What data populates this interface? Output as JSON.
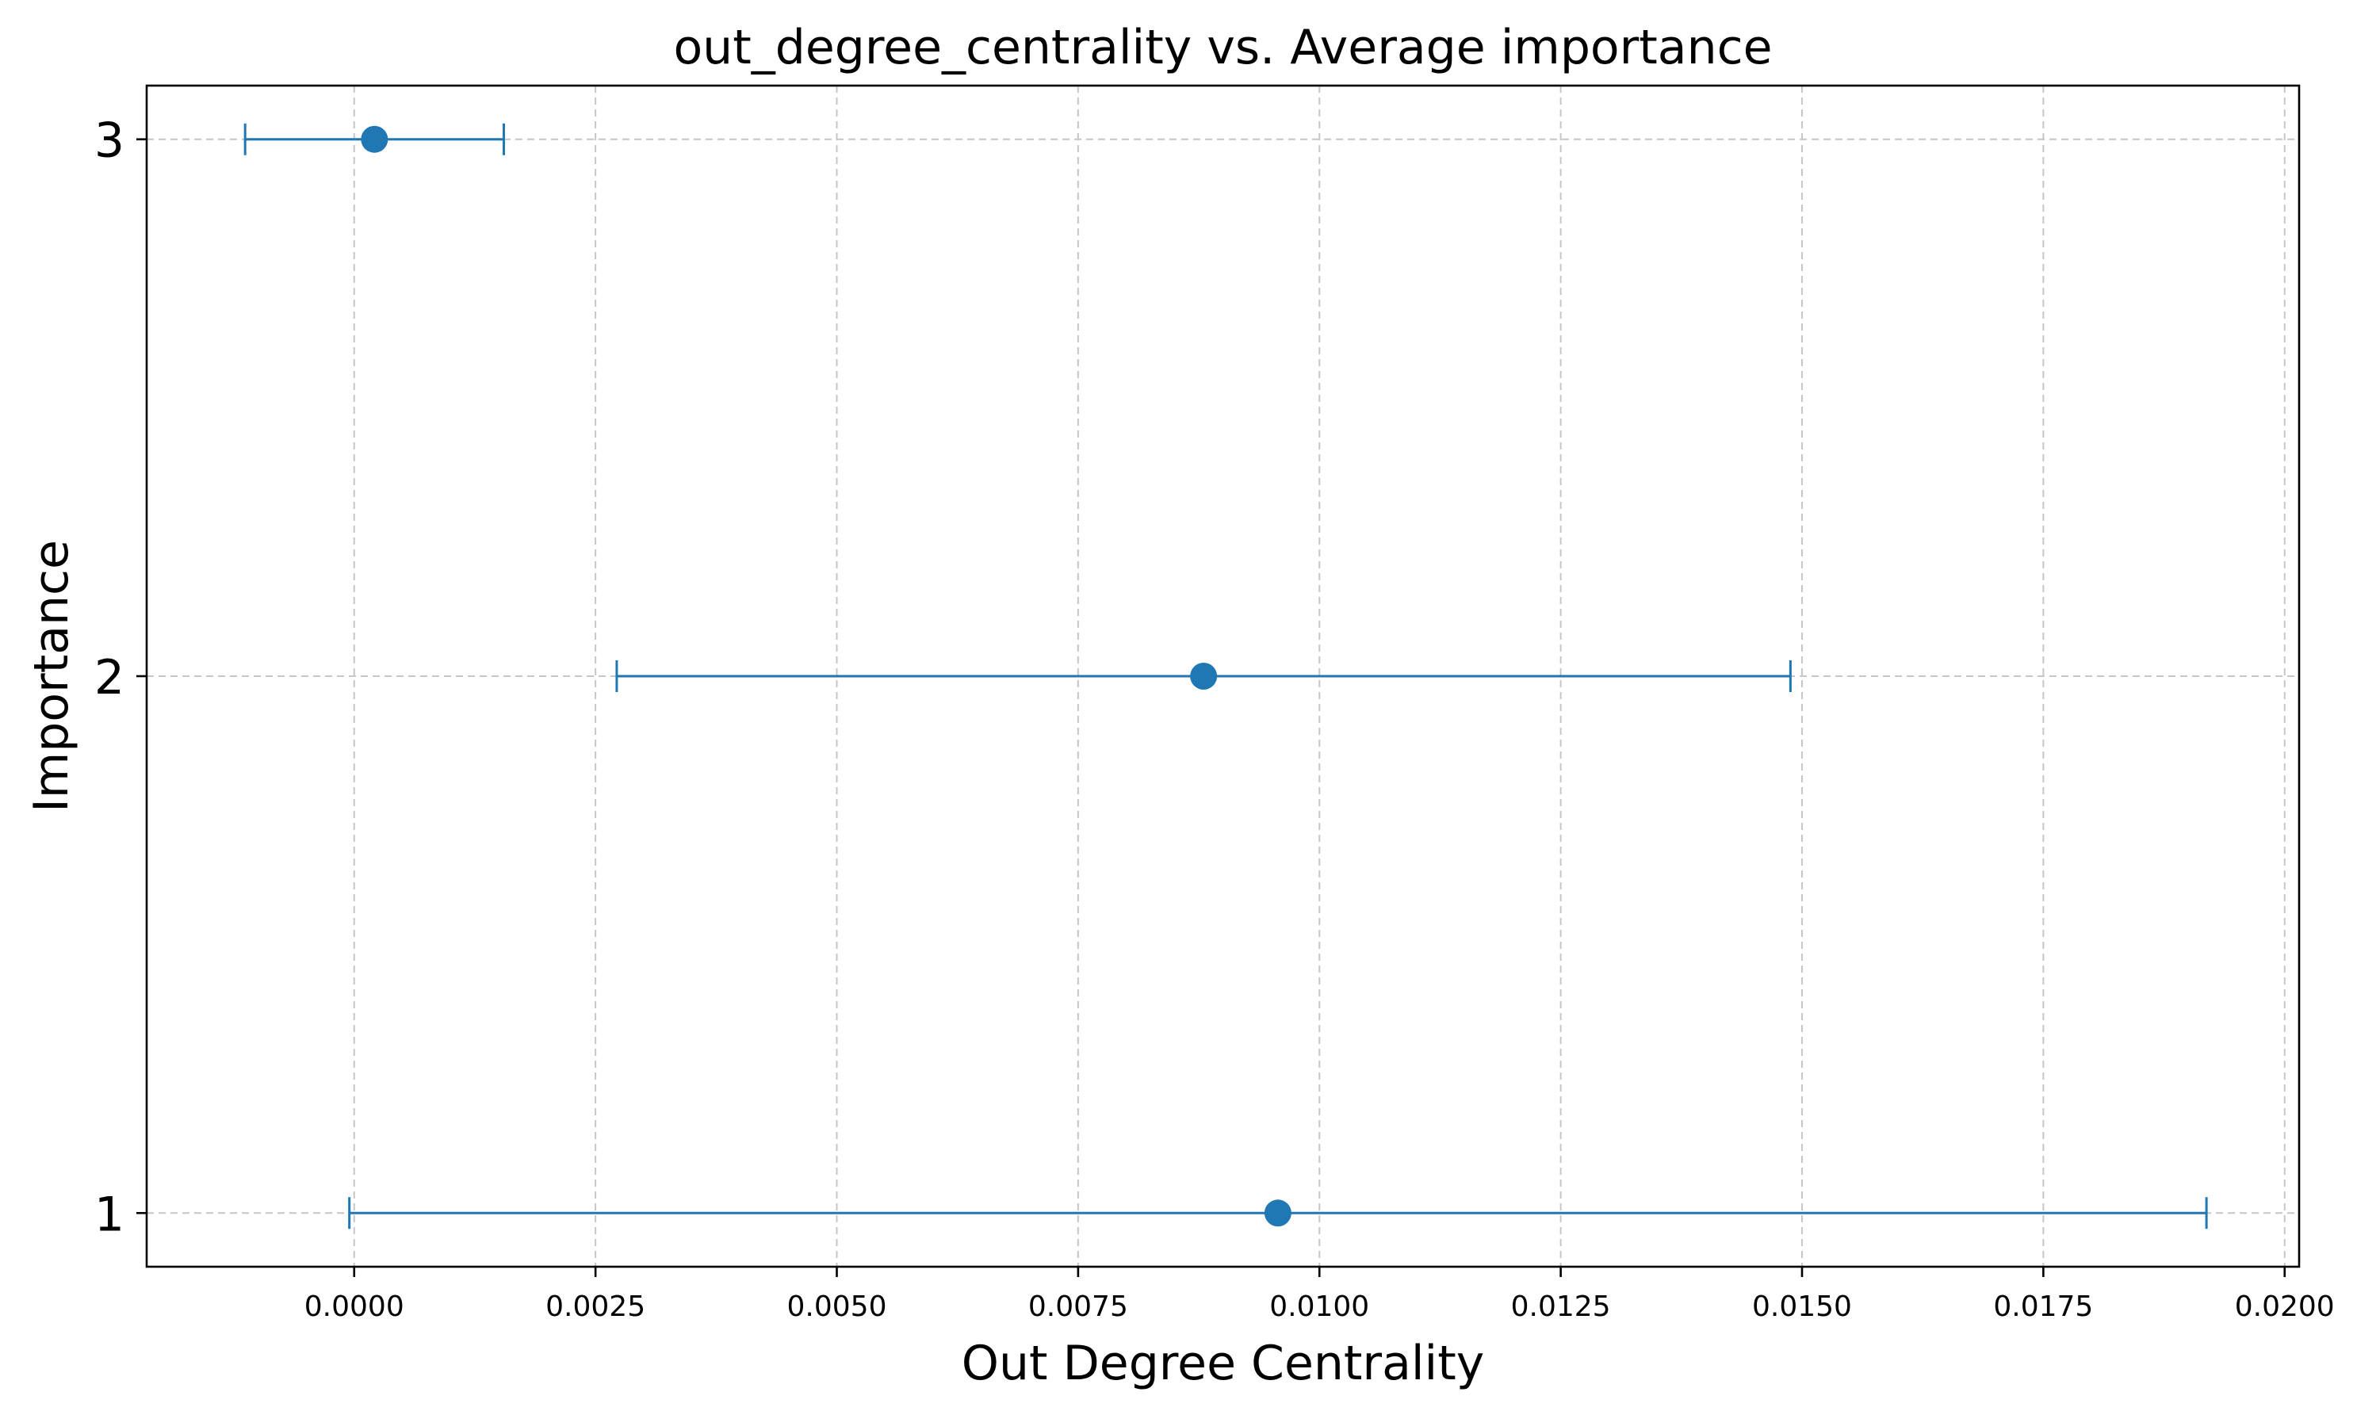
{
  "chart_data": {
    "type": "errorbar",
    "title": "out_degree_centrality vs. Average importance",
    "xlabel": "Out Degree Centrality",
    "ylabel": "Importance",
    "xlim": [
      -0.00215,
      0.02015
    ],
    "ylim": [
      0.9,
      3.1
    ],
    "xticks": [
      0.0,
      0.0025,
      0.005,
      0.0075,
      0.01,
      0.0125,
      0.015,
      0.0175,
      0.02
    ],
    "xtick_labels": [
      "0.0000",
      "0.0025",
      "0.0050",
      "0.0075",
      "0.0100",
      "0.0125",
      "0.0150",
      "0.0175",
      "0.0200"
    ],
    "yticks": [
      1,
      2,
      3
    ],
    "ytick_labels": [
      "1",
      "2",
      "3"
    ],
    "grid": true,
    "color": "#1f77b4",
    "points": [
      {
        "importance": 1,
        "mean": 0.00957,
        "xerr": 0.00962
      },
      {
        "importance": 2,
        "mean": 0.0088,
        "xerr": 0.00608
      },
      {
        "importance": 3,
        "mean": 0.00021,
        "xerr": 0.00134
      }
    ]
  }
}
